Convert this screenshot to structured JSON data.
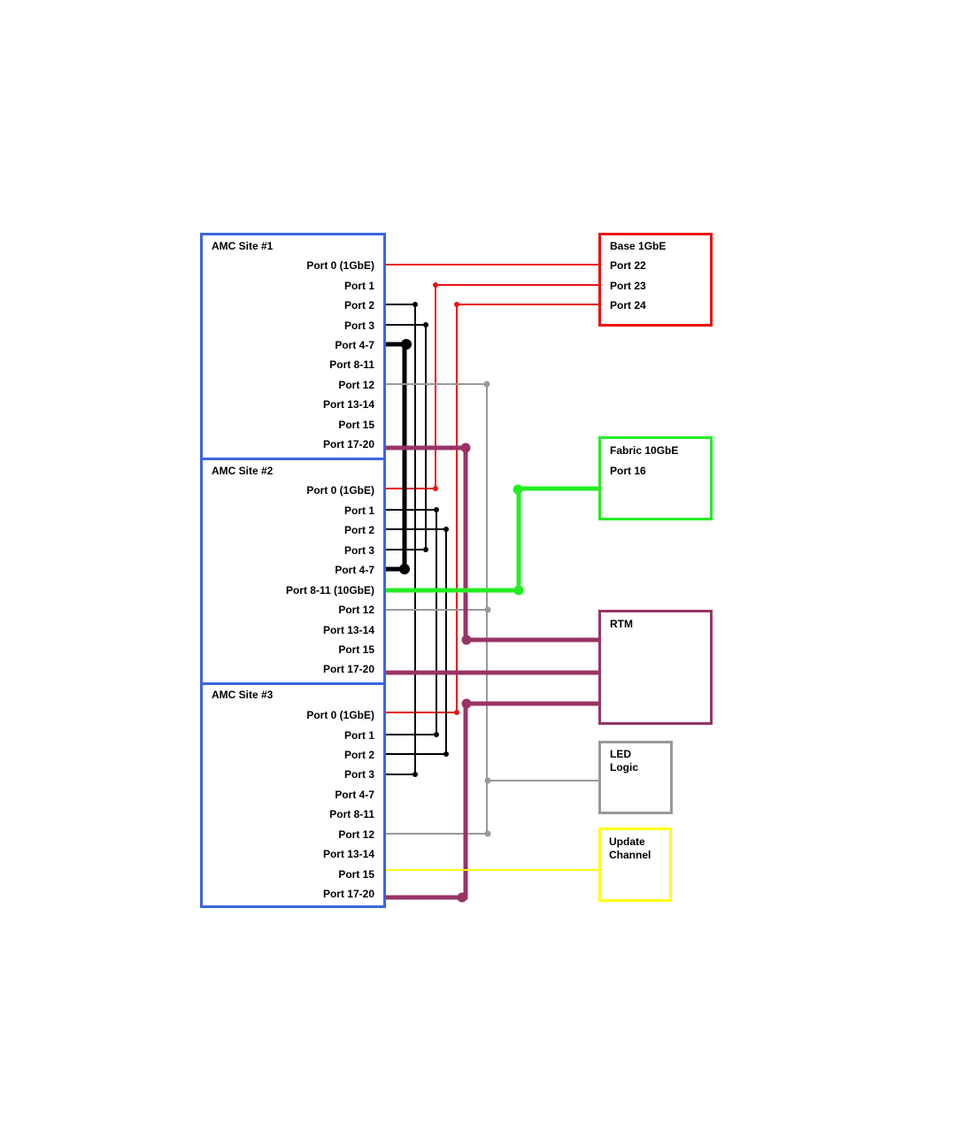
{
  "colors": {
    "amc_site": "#3a66e0",
    "base": "#ee1111",
    "fabric": "#22ee22",
    "rtm": "#993366",
    "led": "#999999",
    "update": "#ffff11",
    "black": "#000000"
  },
  "sites": [
    {
      "title": "AMC Site #1",
      "ports": [
        "Port 0 (1GbE)",
        "Port 1",
        "Port 2",
        "Port 3",
        "Port 4-7",
        "Port 8-11",
        "Port 12",
        "Port 13-14",
        "Port 15",
        "Port 17-20"
      ]
    },
    {
      "title": "AMC Site #2",
      "ports": [
        "Port 0 (1GbE)",
        "Port 1",
        "Port 2",
        "Port 3",
        "Port 4-7",
        "Port 8-11 (10GbE)",
        "Port 12",
        "Port 13-14",
        "Port 15",
        "Port 17-20"
      ]
    },
    {
      "title": "AMC Site #3",
      "ports": [
        "Port 0 (1GbE)",
        "Port 1",
        "Port 2",
        "Port 3",
        "Port 4-7",
        "Port 8-11",
        "Port 12",
        "Port 13-14",
        "Port 15",
        "Port 17-20"
      ]
    }
  ],
  "base": {
    "title": "Base 1GbE",
    "ports": [
      "Port 22",
      "Port 23",
      "Port 24"
    ]
  },
  "fabric": {
    "title": "Fabric 10GbE",
    "ports": [
      "Port 16"
    ]
  },
  "rtm": {
    "title": "RTM"
  },
  "led": {
    "line1": "LED",
    "line2": "Logic"
  },
  "update": {
    "line1": "Update",
    "line2": "Channel"
  }
}
